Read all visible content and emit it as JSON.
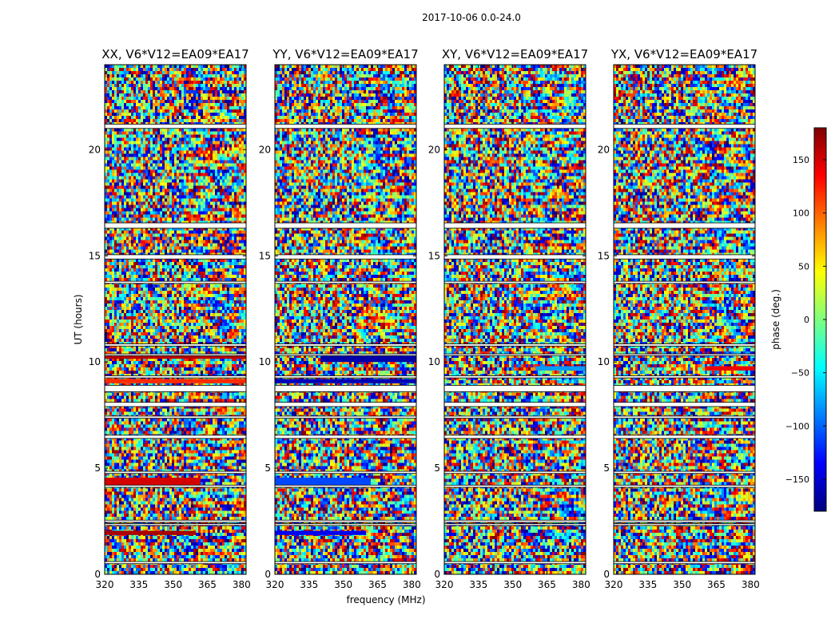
{
  "chart_data": {
    "type": "heatmap",
    "suptitle": "2017-10-06 0.0-24.0",
    "xlabel": "frequency (MHz)",
    "ylabel": "UT (hours)",
    "xlim": [
      320,
      382
    ],
    "ylim": [
      0,
      24
    ],
    "xticks": [
      320,
      335,
      350,
      365,
      380
    ],
    "yticks": [
      0,
      5,
      10,
      15,
      20
    ],
    "colorbar": {
      "label": "phase (deg.)",
      "range": [
        -180,
        180
      ],
      "ticks": [
        150,
        100,
        50,
        0,
        -50,
        -100,
        -150
      ],
      "tick_labels": [
        "150",
        "100",
        "50",
        "0",
        "−50",
        "−100",
        "−150"
      ],
      "colormap": "jet",
      "colors": [
        "#00007f",
        "#0000ff",
        "#007fff",
        "#00ffff",
        "#7fff7f",
        "#ffff00",
        "#ff7f00",
        "#ff0000",
        "#7f0000"
      ]
    },
    "panels": [
      {
        "title": "XX, V6*V12=EA09*EA17"
      },
      {
        "title": "YY, V6*V12=EA09*EA17"
      },
      {
        "title": "XY, V6*V12=EA09*EA17"
      },
      {
        "title": "YX, V6*V12=EA09*EA17"
      }
    ],
    "gaps_hours": [
      [
        21.0,
        21.2
      ],
      [
        16.3,
        16.55
      ],
      [
        14.85,
        15.05
      ],
      [
        13.7,
        13.8
      ],
      [
        10.75,
        10.85
      ],
      [
        10.3,
        10.38
      ],
      [
        9.25,
        9.35
      ],
      [
        8.6,
        8.9
      ],
      [
        7.9,
        8.1
      ],
      [
        7.35,
        7.45
      ],
      [
        6.4,
        6.55
      ],
      [
        4.75,
        4.85
      ],
      [
        4.1,
        4.2
      ],
      [
        2.45,
        2.55
      ],
      [
        2.3,
        2.38
      ],
      [
        0.5,
        0.6
      ]
    ],
    "features": [
      {
        "panel": 0,
        "t0": 4.2,
        "t1": 4.55,
        "f0": 320,
        "f1": 362,
        "phase": 150
      },
      {
        "panel": 0,
        "t0": 10.15,
        "t1": 10.28,
        "f0": 320,
        "f1": 382,
        "phase": 160
      },
      {
        "panel": 0,
        "t0": 1.85,
        "t1": 2.05,
        "f0": 320,
        "f1": 360,
        "phase": 165
      },
      {
        "panel": 0,
        "t0": 9.0,
        "t1": 9.2,
        "f0": 320,
        "f1": 382,
        "phase": 120
      },
      {
        "panel": 1,
        "t0": 4.2,
        "t1": 4.55,
        "f0": 320,
        "f1": 362,
        "phase": -110
      },
      {
        "panel": 1,
        "t0": 10.0,
        "t1": 10.28,
        "f0": 340,
        "f1": 382,
        "phase": -165
      },
      {
        "panel": 1,
        "t0": 1.85,
        "t1": 2.05,
        "f0": 320,
        "f1": 360,
        "phase": -140
      },
      {
        "panel": 1,
        "t0": 9.0,
        "t1": 9.2,
        "f0": 320,
        "f1": 382,
        "phase": -160
      },
      {
        "panel": 2,
        "t0": 9.6,
        "t1": 9.8,
        "f0": 360,
        "f1": 382,
        "phase": -80
      },
      {
        "panel": 3,
        "t0": 9.6,
        "t1": 9.8,
        "f0": 360,
        "f1": 382,
        "phase": 140
      }
    ]
  }
}
